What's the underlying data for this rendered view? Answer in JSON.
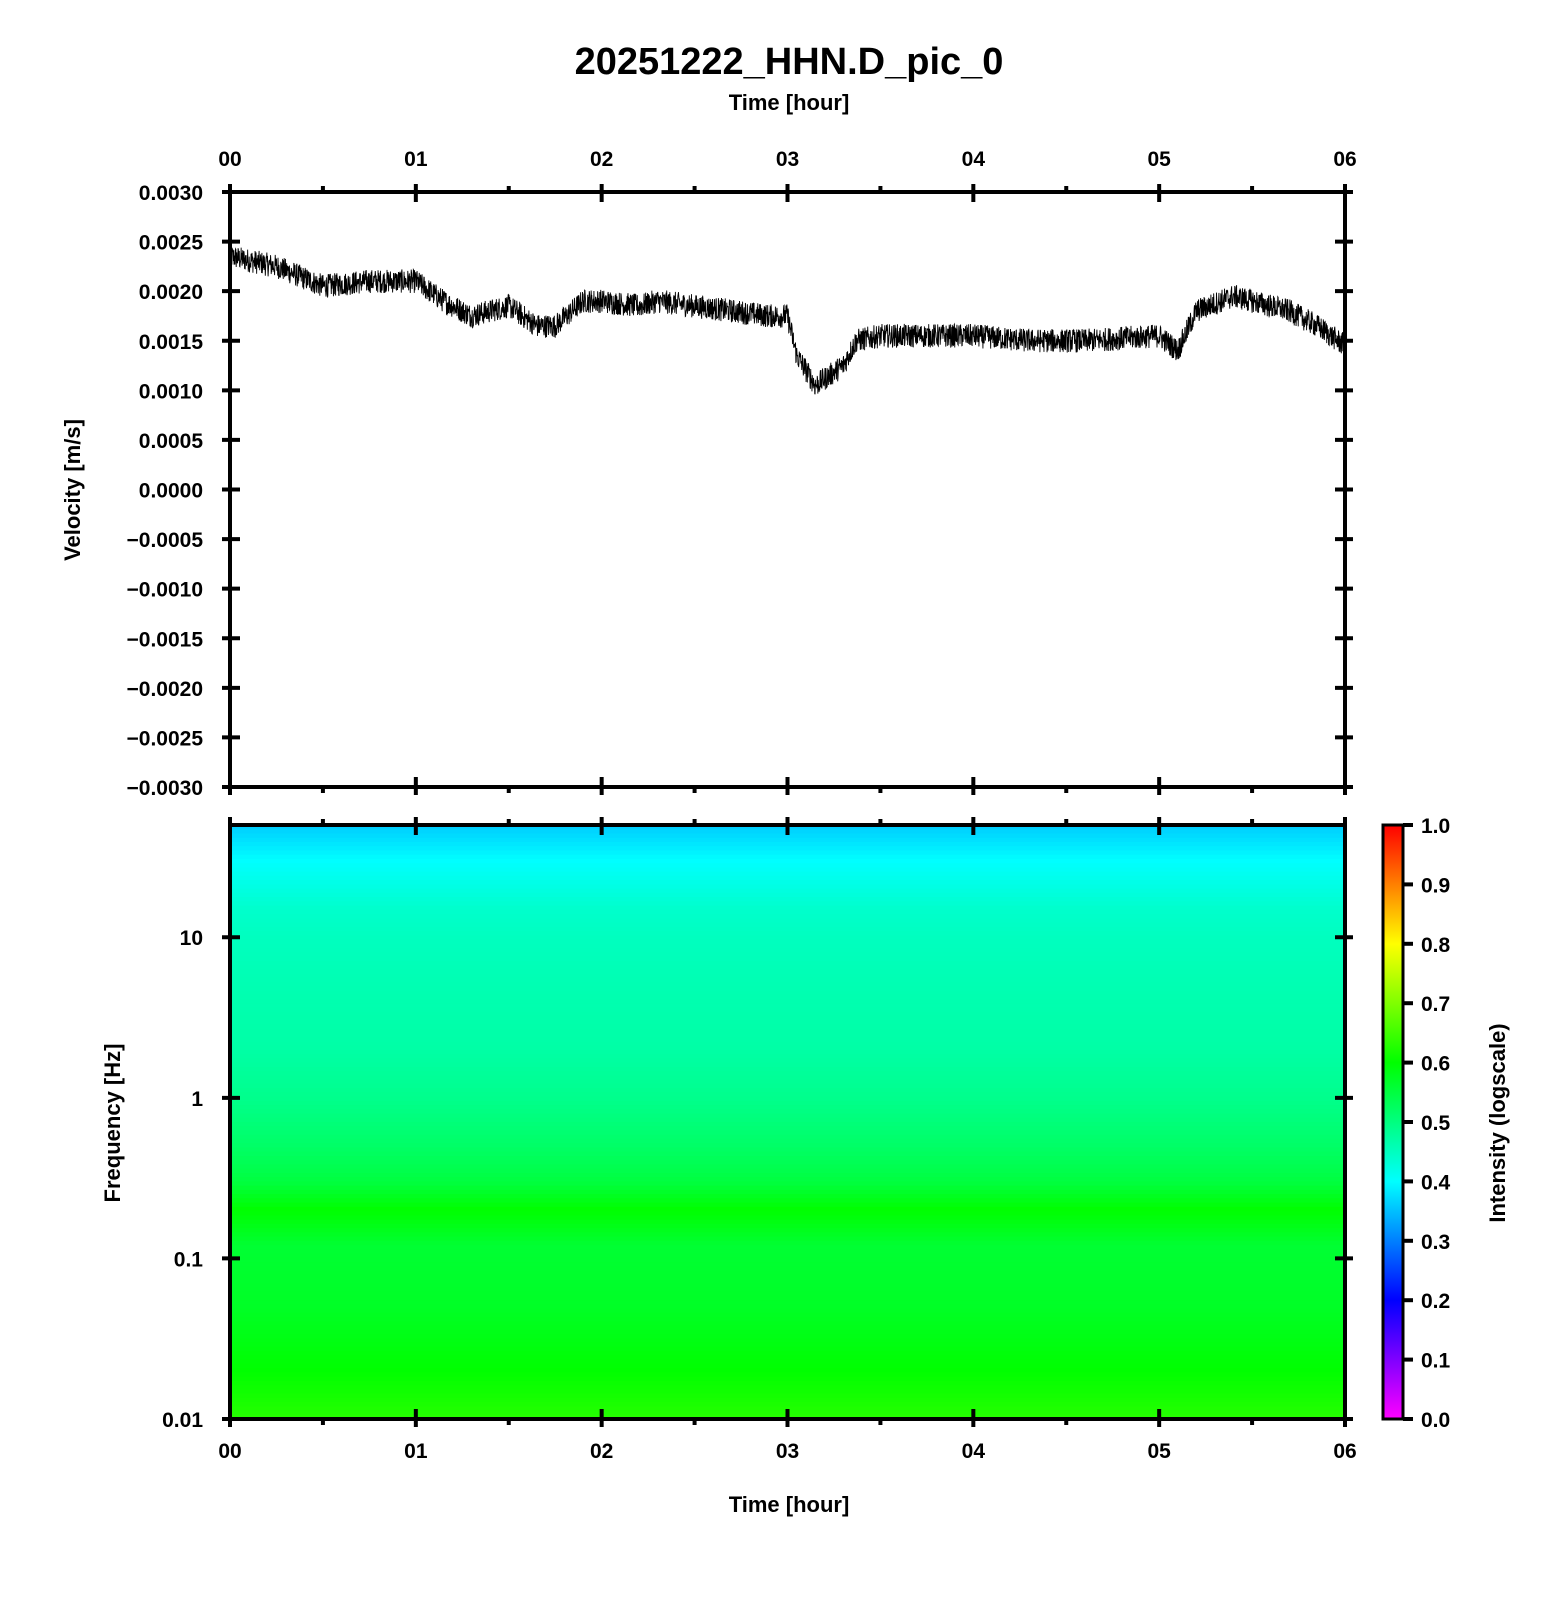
{
  "title": "20251222_HHN.D_pic_0",
  "top_xlabel": "Time [hour]",
  "bottom_xlabel": "Time [hour]",
  "colors": {
    "trace": "#000000",
    "axes": "#000000",
    "background": "#ffffff"
  },
  "chart_data": [
    {
      "type": "line",
      "name": "velocity-trace",
      "xlabel": "Time [hour]",
      "ylabel": "Velocity [m/s]",
      "xlim": [
        0,
        6
      ],
      "ylim": [
        -0.003,
        0.003
      ],
      "x_ticks": [
        "00",
        "01",
        "02",
        "03",
        "04",
        "05",
        "06"
      ],
      "y_ticks": [
        "0.0030",
        "0.0025",
        "0.0020",
        "0.0015",
        "0.0010",
        "0.0005",
        "0.0000",
        "−0.0005",
        "−0.0010",
        "−0.0015",
        "−0.0020",
        "−0.0025",
        "−0.0030"
      ],
      "grid": false,
      "x": [
        0.0,
        0.25,
        0.5,
        0.75,
        1.0,
        1.15,
        1.3,
        1.5,
        1.65,
        1.75,
        1.9,
        2.0,
        2.2,
        2.3,
        2.5,
        2.7,
        2.9,
        3.0,
        3.05,
        3.15,
        3.3,
        3.37,
        3.5,
        3.8,
        4.0,
        4.3,
        4.6,
        5.0,
        5.1,
        5.2,
        5.4,
        5.5,
        5.7,
        5.85,
        6.0
      ],
      "y": [
        0.00235,
        0.00225,
        0.00205,
        0.0021,
        0.0021,
        0.0019,
        0.00175,
        0.00185,
        0.00165,
        0.00165,
        0.0019,
        0.0019,
        0.00185,
        0.0019,
        0.00185,
        0.0018,
        0.00175,
        0.00175,
        0.00135,
        0.00105,
        0.00125,
        0.0015,
        0.00155,
        0.00155,
        0.00155,
        0.0015,
        0.0015,
        0.00155,
        0.0014,
        0.0018,
        0.00195,
        0.0019,
        0.0018,
        0.00165,
        0.00145
      ],
      "noise_amplitude": 0.00012
    },
    {
      "type": "heatmap",
      "name": "spectrogram",
      "xlabel": "Time [hour]",
      "ylabel": "Frequency [Hz]",
      "xlim": [
        0,
        6
      ],
      "ylim": [
        0.01,
        50
      ],
      "y_scale": "log",
      "x_ticks": [
        "00",
        "01",
        "02",
        "03",
        "04",
        "05",
        "06"
      ],
      "y_ticks": [
        "10",
        "1",
        "0.1",
        "0.01"
      ],
      "intensity_profile": {
        "frequency": [
          50,
          30,
          15,
          10,
          5,
          2,
          1,
          0.5,
          0.3,
          0.2,
          0.12,
          0.05,
          0.02,
          0.01
        ],
        "intensity": [
          0.36,
          0.4,
          0.44,
          0.45,
          0.46,
          0.47,
          0.49,
          0.52,
          0.55,
          0.6,
          0.56,
          0.57,
          0.6,
          0.63
        ]
      },
      "colorbar": {
        "label": "Intensity (logscale)",
        "range": [
          0.0,
          1.0
        ],
        "ticks": [
          "1.0",
          "0.9",
          "0.8",
          "0.7",
          "0.6",
          "0.5",
          "0.4",
          "0.3",
          "0.2",
          "0.1",
          "0.0"
        ],
        "colormap": "rainbow (magenta-blue-cyan-green-yellow-red)"
      }
    }
  ]
}
